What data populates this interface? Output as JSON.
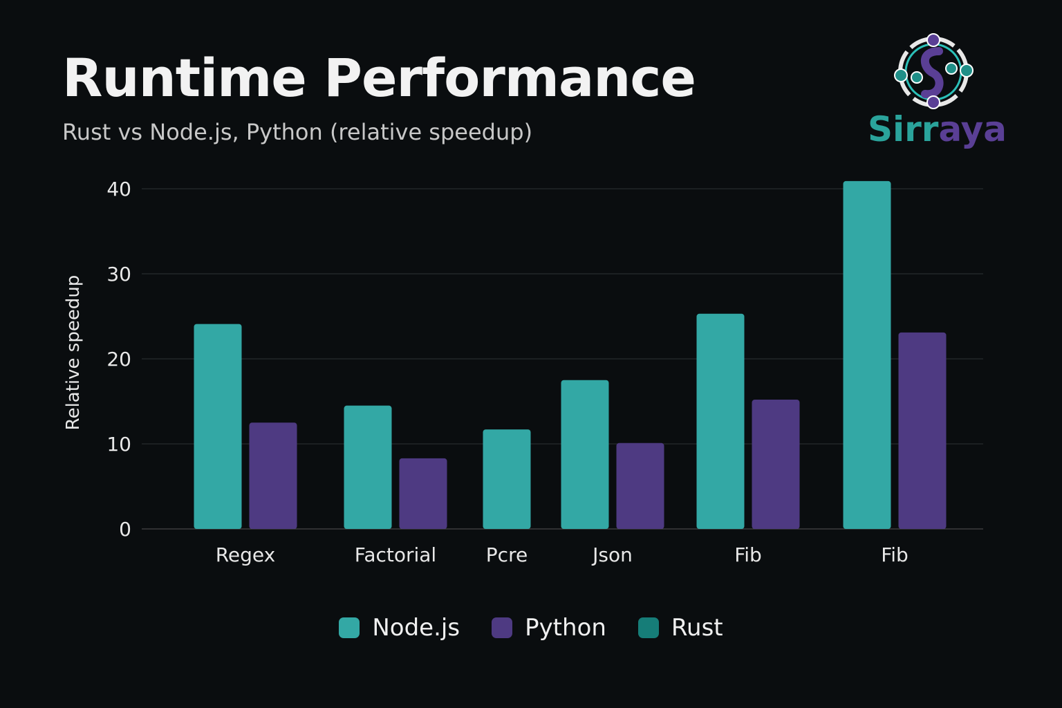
{
  "title": "Runtime Performance",
  "subtitle": "Rust vs Node.js, Python (relative speedup)",
  "logo": {
    "text": "Sirraya",
    "colors": {
      "teal": "#2aa39b",
      "purple": "#5a3f95"
    }
  },
  "chart_data": {
    "type": "bar",
    "title": "Runtime Performance",
    "subtitle": "Rust vs Node.js, Python (relative speedup)",
    "xlabel": "",
    "ylabel": "Relative speedup",
    "ylim": [
      0,
      40
    ],
    "yticks": [
      0,
      10,
      20,
      30,
      40
    ],
    "grid": true,
    "legend_position": "bottom",
    "categories": [
      "Regex",
      "Factorial",
      "Pcre",
      "Json",
      "Fib",
      "Fib"
    ],
    "series": [
      {
        "name": "Node.js",
        "color": "#33a8a5",
        "values": [
          24.1,
          14.5,
          11.7,
          17.5,
          25.3,
          40.9
        ]
      },
      {
        "name": "Python",
        "color": "#4e3a82",
        "values": [
          12.5,
          8.3,
          null,
          10.1,
          15.2,
          23.1
        ]
      },
      {
        "name": "Rust",
        "color": "#167d78",
        "values": [
          null,
          null,
          null,
          null,
          null,
          null
        ]
      }
    ]
  }
}
